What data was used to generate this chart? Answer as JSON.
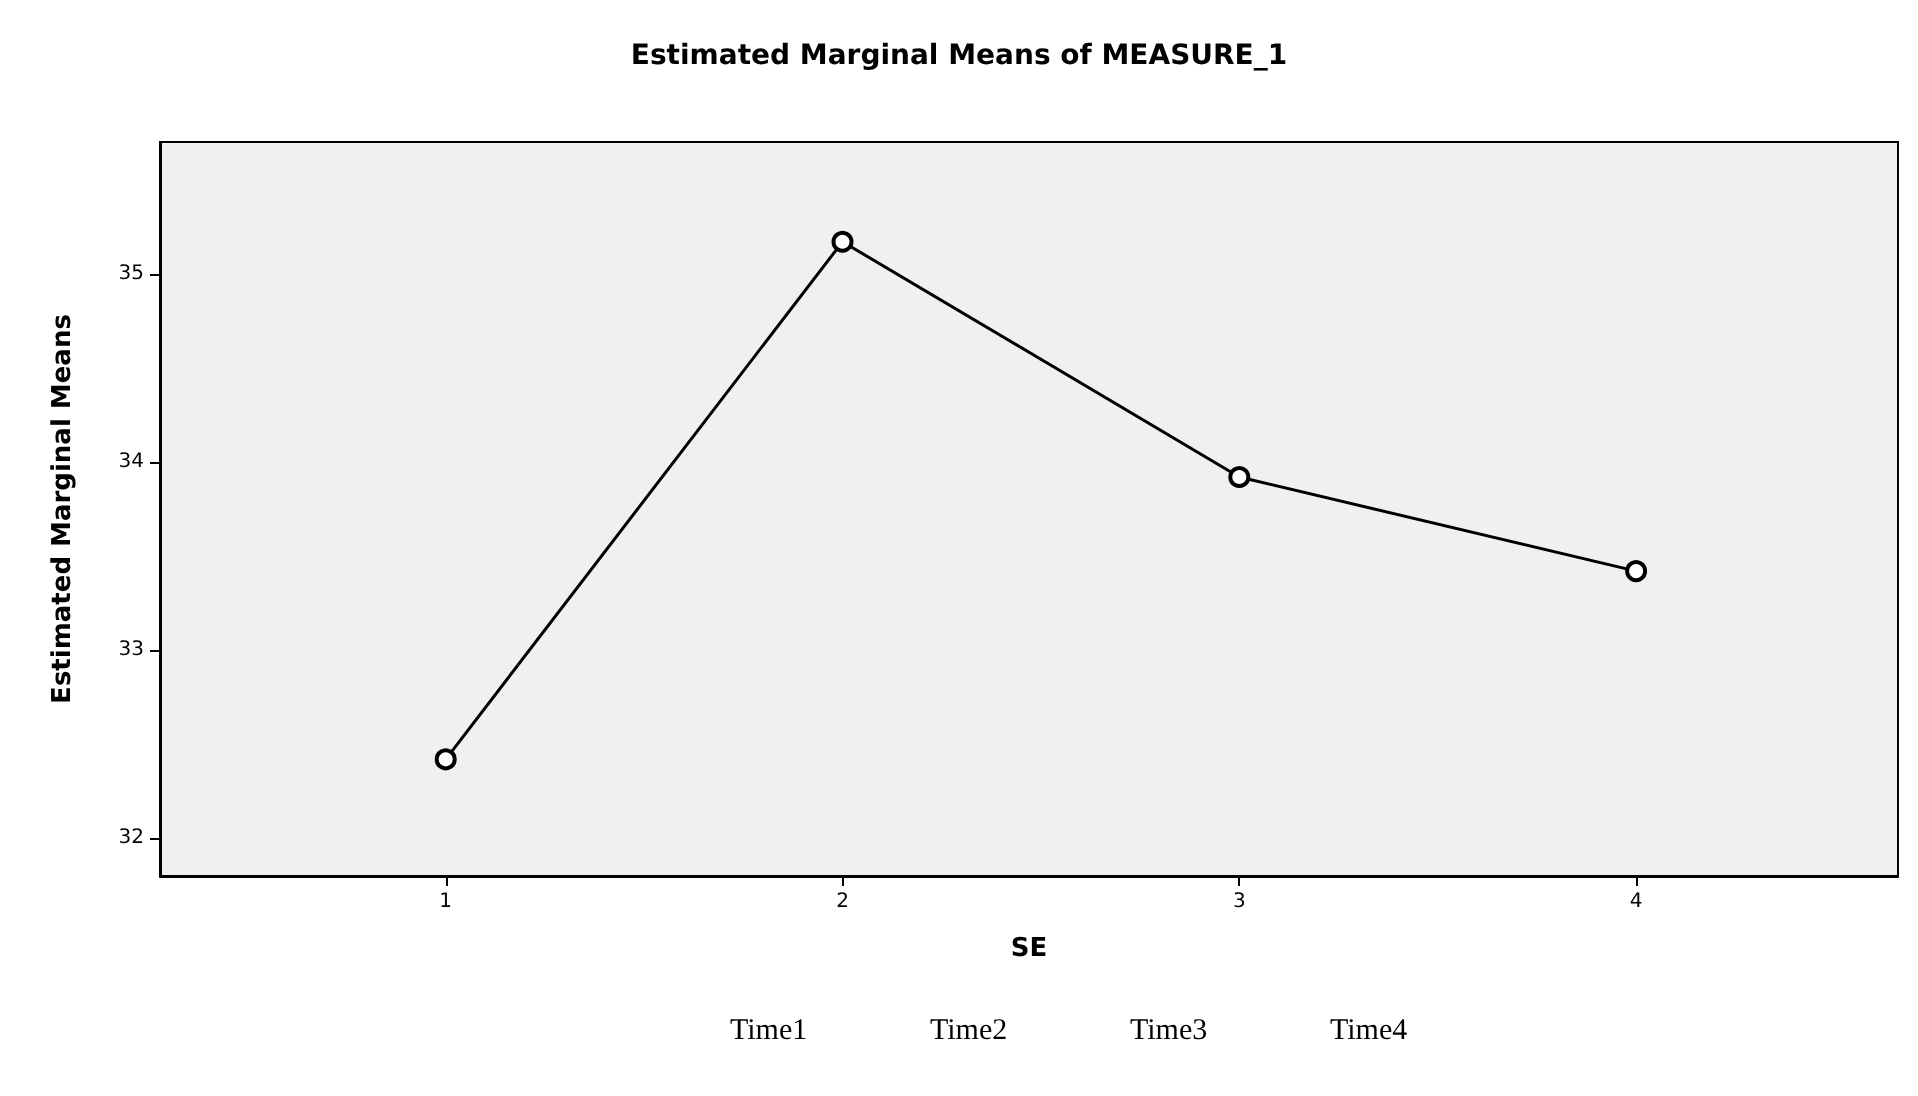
{
  "chart_data": {
    "type": "line",
    "title": "Estimated Marginal Means of MEASURE_1",
    "xlabel": "SE",
    "ylabel": "Estimated Marginal Means",
    "x": [
      1,
      2,
      3,
      4
    ],
    "xlim": [
      0.28,
      4.66
    ],
    "xticks": [
      1,
      2,
      3,
      4
    ],
    "values": [
      32.42,
      35.17,
      33.92,
      33.42
    ],
    "color": "#000000",
    "ylim": [
      31.8,
      35.7
    ],
    "yticks": [
      32,
      33,
      34,
      35
    ],
    "grid": false,
    "marker": "circle",
    "line_style": "solid",
    "annotations": [
      "Time1",
      "Time2",
      "Time3",
      "Time4"
    ]
  }
}
